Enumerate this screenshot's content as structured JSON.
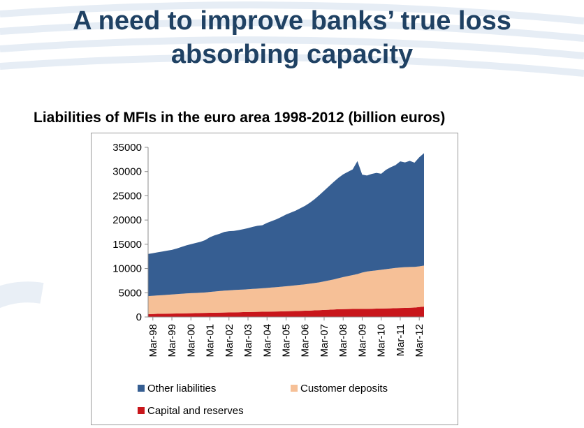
{
  "slide": {
    "title_line1": "A need to improve banks’ true loss",
    "title_line2": "absorbing capacity",
    "chart_heading": "Liabilities of MFIs in the euro area 1998-2012 (billion euros)"
  },
  "colors": {
    "title": "#1f4163",
    "other_liabilities": "#365e92",
    "customer_deposits": "#f6c097",
    "capital_reserves": "#c8161b",
    "background_deco": "#e8eef5"
  },
  "chart_data": {
    "type": "area",
    "stacked": true,
    "title": "Liabilities of MFIs in the euro area 1998-2012 (billion euros)",
    "xlabel": "",
    "ylabel": "",
    "ylim": [
      0,
      35000
    ],
    "yticks": [
      0,
      5000,
      10000,
      15000,
      20000,
      25000,
      30000,
      35000
    ],
    "xtick_labels": [
      "Mar-98",
      "Mar-99",
      "Mar-00",
      "Mar-01",
      "Mar-02",
      "Mar-03",
      "Mar-04",
      "Mar-05",
      "Mar-06",
      "Mar-07",
      "Mar-08",
      "Mar-09",
      "Mar-10",
      "Mar-11",
      "Mar-12"
    ],
    "grid": false,
    "legend_position": "bottom",
    "x": [
      "Jan-98",
      "Mar-98",
      "Jun-98",
      "Sep-98",
      "Dec-98",
      "Mar-99",
      "Jun-99",
      "Sep-99",
      "Dec-99",
      "Mar-00",
      "Jun-00",
      "Sep-00",
      "Dec-00",
      "Mar-01",
      "Jun-01",
      "Sep-01",
      "Dec-01",
      "Mar-02",
      "Jun-02",
      "Sep-02",
      "Dec-02",
      "Mar-03",
      "Jun-03",
      "Sep-03",
      "Dec-03",
      "Mar-04",
      "Jun-04",
      "Sep-04",
      "Dec-04",
      "Mar-05",
      "Jun-05",
      "Sep-05",
      "Dec-05",
      "Mar-06",
      "Jun-06",
      "Sep-06",
      "Dec-06",
      "Mar-07",
      "Jun-07",
      "Sep-07",
      "Dec-07",
      "Mar-08",
      "Jun-08",
      "Sep-08",
      "Dec-08",
      "Mar-09",
      "Jun-09",
      "Sep-09",
      "Dec-09",
      "Mar-10",
      "Jun-10",
      "Sep-10",
      "Dec-10",
      "Mar-11",
      "Jun-11",
      "Sep-11",
      "Dec-11",
      "Mar-12",
      "Jun-12"
    ],
    "series": [
      {
        "name": "Capital and reserves",
        "values": [
          600,
          620,
          640,
          660,
          680,
          700,
          720,
          740,
          760,
          780,
          800,
          820,
          840,
          860,
          880,
          900,
          920,
          940,
          960,
          980,
          1000,
          1020,
          1040,
          1060,
          1080,
          1100,
          1120,
          1140,
          1160,
          1180,
          1200,
          1230,
          1260,
          1290,
          1320,
          1360,
          1400,
          1450,
          1500,
          1550,
          1600,
          1620,
          1640,
          1650,
          1650,
          1660,
          1680,
          1700,
          1720,
          1740,
          1760,
          1790,
          1820,
          1850,
          1880,
          1910,
          1940,
          2050,
          2150
        ]
      },
      {
        "name": "Customer deposits",
        "values": [
          3700,
          3750,
          3800,
          3850,
          3900,
          3950,
          4000,
          4050,
          4100,
          4130,
          4160,
          4190,
          4220,
          4300,
          4380,
          4450,
          4520,
          4560,
          4600,
          4630,
          4660,
          4700,
          4750,
          4800,
          4850,
          4900,
          4960,
          5020,
          5080,
          5150,
          5230,
          5300,
          5380,
          5450,
          5550,
          5650,
          5750,
          5900,
          6050,
          6200,
          6400,
          6600,
          6800,
          7000,
          7200,
          7500,
          7700,
          7800,
          7900,
          8000,
          8100,
          8200,
          8300,
          8350,
          8400,
          8400,
          8400,
          8400,
          8450
        ]
      },
      {
        "name": "Other liabilities",
        "values": [
          8700,
          8800,
          8900,
          9000,
          9100,
          9200,
          9400,
          9650,
          9900,
          10100,
          10300,
          10500,
          10800,
          11300,
          11600,
          11800,
          12100,
          12200,
          12200,
          12300,
          12450,
          12600,
          12800,
          12950,
          13000,
          13400,
          13700,
          14000,
          14400,
          14800,
          15100,
          15400,
          15800,
          16200,
          16700,
          17300,
          18000,
          18700,
          19400,
          20100,
          20700,
          21200,
          21500,
          21800,
          23300,
          20200,
          19800,
          20000,
          20100,
          19800,
          20500,
          20900,
          21200,
          21900,
          21600,
          21900,
          21500,
          22500,
          23200
        ]
      }
    ],
    "legend": [
      "Other liabilities",
      "Customer deposits",
      "Capital and reserves"
    ]
  }
}
